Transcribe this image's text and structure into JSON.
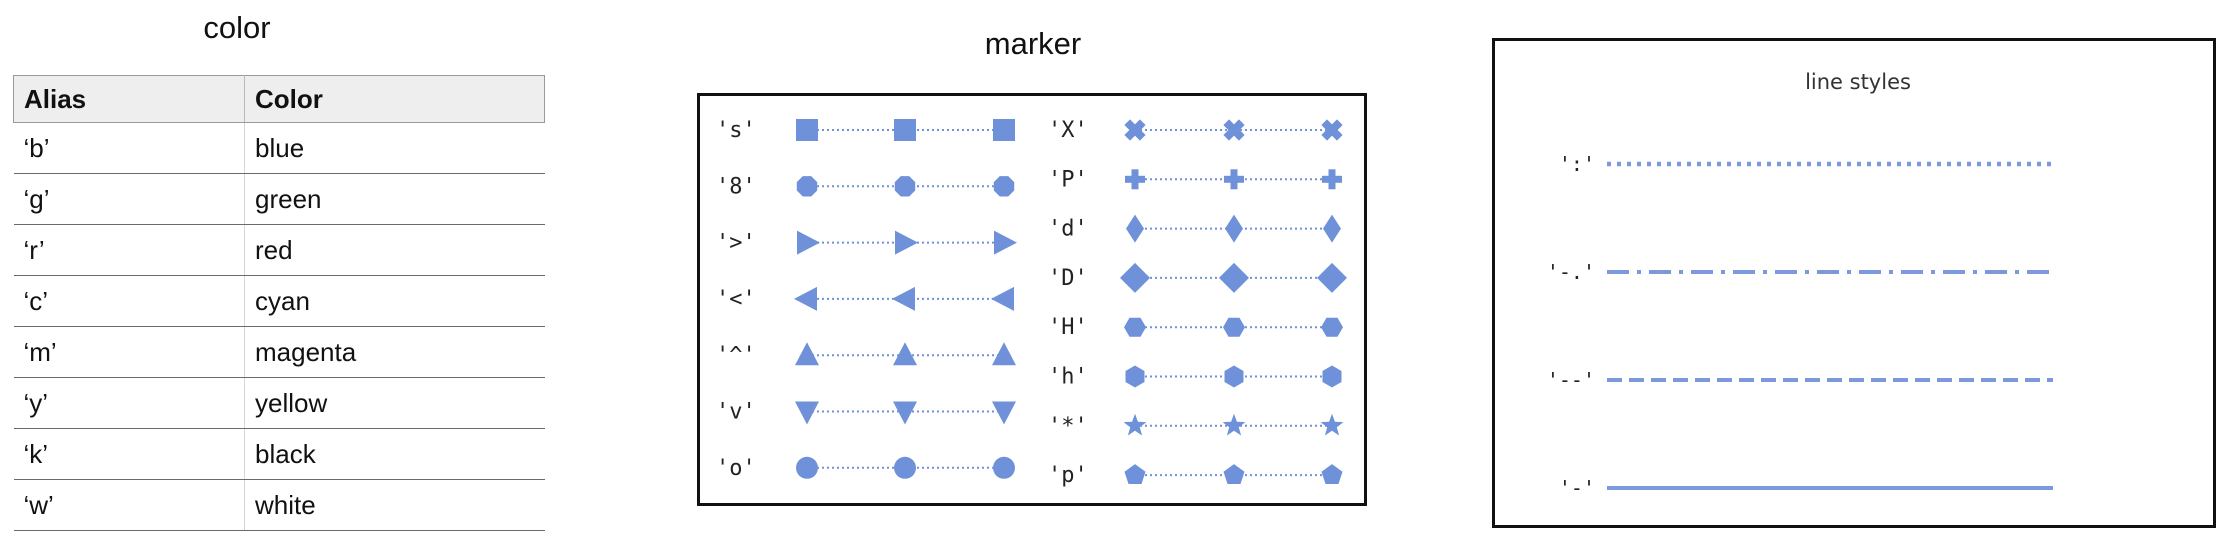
{
  "color_section": {
    "title": "color",
    "headers": {
      "alias": "Alias",
      "color": "Color"
    },
    "rows": [
      {
        "alias": "‘b’",
        "color": "blue"
      },
      {
        "alias": "‘g’",
        "color": "green"
      },
      {
        "alias": "‘r’",
        "color": "red"
      },
      {
        "alias": "‘c’",
        "color": "cyan"
      },
      {
        "alias": "‘m’",
        "color": "magenta"
      },
      {
        "alias": "‘y’",
        "color": "yellow"
      },
      {
        "alias": "‘k’",
        "color": "black"
      },
      {
        "alias": "‘w’",
        "color": "white"
      }
    ]
  },
  "marker_section": {
    "title": "marker",
    "marker_color": "#6f91d9",
    "left_column": [
      {
        "label": "'s'",
        "shape": "square"
      },
      {
        "label": "'8'",
        "shape": "octagon"
      },
      {
        "label": "'>'",
        "shape": "triangle-right"
      },
      {
        "label": "'<'",
        "shape": "triangle-left"
      },
      {
        "label": "'^'",
        "shape": "triangle-up"
      },
      {
        "label": "'v'",
        "shape": "triangle-down"
      },
      {
        "label": "'o'",
        "shape": "circle"
      }
    ],
    "right_column": [
      {
        "label": "'X'",
        "shape": "x-filled"
      },
      {
        "label": "'P'",
        "shape": "plus-filled"
      },
      {
        "label": "'d'",
        "shape": "thin-diamond"
      },
      {
        "label": "'D'",
        "shape": "diamond"
      },
      {
        "label": "'H'",
        "shape": "hexagon-flat"
      },
      {
        "label": "'h'",
        "shape": "hexagon-pointy"
      },
      {
        "label": "'*'",
        "shape": "star"
      },
      {
        "label": "'p'",
        "shape": "pentagon"
      }
    ]
  },
  "line_section": {
    "title": "line styles",
    "line_color": "#7d99dc",
    "styles": [
      {
        "label": "':'",
        "style": "dotted"
      },
      {
        "label": "'-.'",
        "style": "dashdot"
      },
      {
        "label": "'--'",
        "style": "dashed"
      },
      {
        "label": "'-'",
        "style": "solid"
      }
    ]
  }
}
